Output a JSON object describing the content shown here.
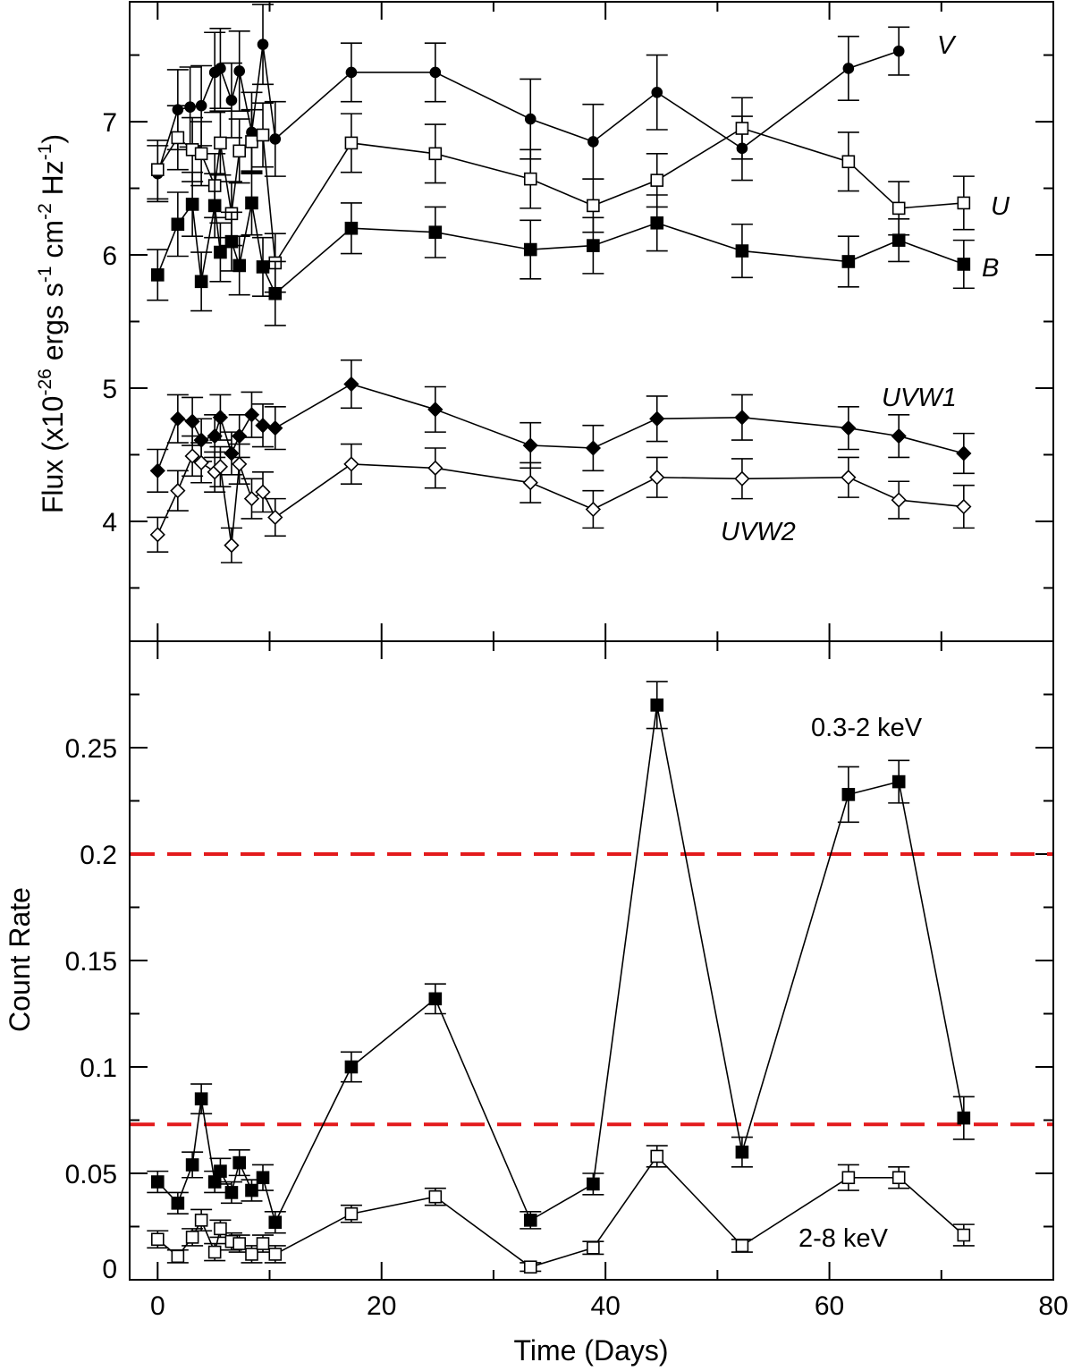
{
  "chart_data": [
    {
      "type": "line",
      "panel": "top",
      "title": "",
      "xlabel": "",
      "ylabel": "Flux (x10^-26 ergs s^-1 cm^-2 Hz^-1)",
      "ylabel_parts": {
        "base": "Flux (x10",
        "exp1": "-26",
        "mid1": " ergs s",
        "exp2": "-1",
        "mid2": " cm",
        "exp3": "-2",
        "mid3": " Hz",
        "exp4": "-1",
        "end": ")"
      },
      "xlim": [
        -2.5,
        80
      ],
      "ylim": [
        3.1,
        7.9
      ],
      "yticks": [
        4,
        5,
        6,
        7
      ],
      "ytick_labels": [
        "4",
        "5",
        "6",
        "7"
      ],
      "series": [
        {
          "name": "V",
          "marker": "circle-filled",
          "x": [
            0,
            1.8,
            2.9,
            3.9,
            5.1,
            5.6,
            6.6,
            7.3,
            8.4,
            9.4,
            10.5,
            17.3,
            24.8,
            33.3,
            38.9,
            44.6,
            52.2,
            61.7,
            66.2
          ],
          "y": [
            6.61,
            7.09,
            7.11,
            7.12,
            7.37,
            7.4,
            7.16,
            7.38,
            6.92,
            7.58,
            6.87,
            7.37,
            7.37,
            7.02,
            6.85,
            7.22,
            6.8,
            7.4,
            7.53
          ],
          "err": [
            0.21,
            0.3,
            0.3,
            0.3,
            0.3,
            0.3,
            0.28,
            0.3,
            0.3,
            0.3,
            0.28,
            0.22,
            0.22,
            0.3,
            0.28,
            0.28,
            0.24,
            0.24,
            0.18
          ]
        },
        {
          "name": "U",
          "marker": "square-open",
          "x": [
            0,
            1.8,
            3.1,
            3.9,
            5.1,
            5.6,
            6.6,
            7.3,
            8.4,
            9.4,
            10.5,
            17.3,
            24.8,
            33.3,
            38.9,
            44.6,
            52.2,
            61.7,
            66.2,
            72.0
          ],
          "y": [
            6.64,
            6.88,
            6.79,
            6.76,
            6.52,
            6.84,
            6.31,
            6.78,
            6.85,
            6.9,
            5.94,
            6.84,
            6.76,
            6.57,
            6.37,
            6.56,
            6.95,
            6.7,
            6.35,
            6.39
          ],
          "err": [
            0.22,
            0.24,
            0.24,
            0.24,
            0.24,
            0.24,
            0.24,
            0.24,
            0.24,
            0.24,
            0.22,
            0.22,
            0.22,
            0.22,
            0.2,
            0.2,
            0.23,
            0.22,
            0.2,
            0.2
          ]
        },
        {
          "name": "B",
          "marker": "square-filled",
          "x": [
            0,
            1.8,
            3.1,
            3.9,
            5.1,
            5.6,
            6.6,
            7.3,
            8.4,
            9.4,
            10.5,
            17.3,
            24.8,
            33.3,
            38.9,
            44.6,
            52.2,
            61.7,
            66.2,
            72.0
          ],
          "y": [
            5.85,
            6.23,
            6.38,
            5.8,
            6.37,
            6.02,
            6.1,
            5.92,
            6.39,
            5.91,
            5.71,
            6.2,
            6.17,
            6.04,
            6.07,
            6.24,
            6.03,
            5.95,
            6.11,
            5.93
          ],
          "err": [
            0.19,
            0.24,
            0.24,
            0.22,
            0.24,
            0.22,
            0.22,
            0.22,
            0.24,
            0.22,
            0.24,
            0.19,
            0.19,
            0.22,
            0.21,
            0.21,
            0.2,
            0.19,
            0.16,
            0.18
          ]
        },
        {
          "name": "UVW1",
          "marker": "diamond-filled",
          "x": [
            0,
            1.8,
            3.1,
            3.9,
            5.1,
            5.6,
            6.6,
            7.3,
            8.4,
            9.4,
            10.5,
            17.3,
            24.8,
            33.3,
            38.9,
            44.6,
            52.2,
            61.7,
            66.2,
            72.0
          ],
          "y": [
            4.38,
            4.77,
            4.75,
            4.61,
            4.64,
            4.78,
            4.51,
            4.64,
            4.8,
            4.72,
            4.7,
            5.03,
            4.84,
            4.57,
            4.55,
            4.77,
            4.78,
            4.7,
            4.64,
            4.51
          ],
          "err": [
            0.16,
            0.18,
            0.18,
            0.16,
            0.16,
            0.17,
            0.16,
            0.16,
            0.17,
            0.16,
            0.16,
            0.18,
            0.17,
            0.17,
            0.17,
            0.17,
            0.17,
            0.16,
            0.16,
            0.15
          ]
        },
        {
          "name": "UVW2",
          "marker": "diamond-open",
          "x": [
            0,
            1.8,
            3.1,
            3.9,
            5.1,
            5.6,
            6.6,
            7.3,
            8.4,
            9.4,
            10.5,
            17.3,
            24.8,
            33.3,
            38.9,
            44.6,
            52.2,
            61.7,
            66.2,
            72.0
          ],
          "y": [
            3.9,
            4.23,
            4.49,
            4.44,
            4.37,
            4.41,
            3.82,
            4.43,
            4.17,
            4.22,
            4.03,
            4.43,
            4.4,
            4.29,
            4.09,
            4.33,
            4.32,
            4.33,
            4.16,
            4.11
          ],
          "err": [
            0.13,
            0.15,
            0.15,
            0.15,
            0.15,
            0.15,
            0.13,
            0.15,
            0.15,
            0.15,
            0.14,
            0.15,
            0.15,
            0.15,
            0.14,
            0.15,
            0.15,
            0.15,
            0.14,
            0.16
          ]
        }
      ]
    },
    {
      "type": "line",
      "panel": "bottom",
      "title": "",
      "xlabel": "Time (Days)",
      "ylabel": "Count Rate",
      "xlim": [
        -2.5,
        80
      ],
      "ylim": [
        0,
        0.3
      ],
      "xticks": [
        0,
        20,
        40,
        60,
        80
      ],
      "xtick_labels": [
        "0",
        "20",
        "40",
        "60",
        "80"
      ],
      "yticks": [
        0,
        0.05,
        0.1,
        0.15,
        0.2,
        0.25
      ],
      "ytick_labels": [
        "0",
        "0.05",
        "0.1",
        "0.15",
        "0.2",
        "0.25"
      ],
      "reference_lines": [
        {
          "y": 0.2,
          "color": "#e31a1c",
          "style": "dashed"
        },
        {
          "y": 0.073,
          "color": "#e31a1c",
          "style": "dashed"
        }
      ],
      "series": [
        {
          "name": "0.3-2 keV",
          "marker": "square-filled",
          "x": [
            0,
            1.8,
            3.1,
            3.9,
            5.1,
            5.6,
            6.6,
            7.3,
            8.4,
            9.4,
            10.5,
            17.3,
            24.8,
            33.3,
            38.9,
            44.6,
            52.2,
            61.7,
            66.2,
            72.0
          ],
          "y": [
            0.046,
            0.036,
            0.054,
            0.085,
            0.046,
            0.051,
            0.041,
            0.055,
            0.042,
            0.048,
            0.027,
            0.1,
            0.132,
            0.028,
            0.045,
            0.27,
            0.06,
            0.228,
            0.234,
            0.076
          ],
          "err": [
            0.005,
            0.005,
            0.006,
            0.007,
            0.005,
            0.006,
            0.005,
            0.006,
            0.005,
            0.006,
            0.005,
            0.007,
            0.007,
            0.004,
            0.005,
            0.011,
            0.007,
            0.013,
            0.01,
            0.01
          ]
        },
        {
          "name": "2-8 keV",
          "marker": "square-open",
          "x": [
            0,
            1.8,
            3.1,
            3.9,
            5.1,
            5.6,
            6.6,
            7.3,
            8.4,
            9.4,
            10.5,
            17.3,
            24.8,
            33.3,
            38.9,
            44.6,
            52.2,
            61.7,
            66.2,
            72.0
          ],
          "y": [
            0.019,
            0.011,
            0.02,
            0.028,
            0.013,
            0.024,
            0.018,
            0.017,
            0.012,
            0.017,
            0.012,
            0.031,
            0.039,
            0.006,
            0.015,
            0.058,
            0.016,
            0.048,
            0.048,
            0.021
          ],
          "err": [
            0.004,
            0.003,
            0.004,
            0.005,
            0.004,
            0.004,
            0.004,
            0.004,
            0.004,
            0.004,
            0.004,
            0.004,
            0.004,
            0.002,
            0.003,
            0.005,
            0.003,
            0.006,
            0.005,
            0.005
          ]
        }
      ]
    }
  ],
  "labels": {
    "V": "V",
    "U": "U",
    "B": "B",
    "UVW1": "UVW1",
    "UVW2": "UVW2",
    "soft": "0.3-2 keV",
    "hard": "2-8 keV"
  },
  "colors": {
    "axis": "#000000",
    "reference_line": "#e31a1c",
    "open_fill": "#ffffff"
  }
}
